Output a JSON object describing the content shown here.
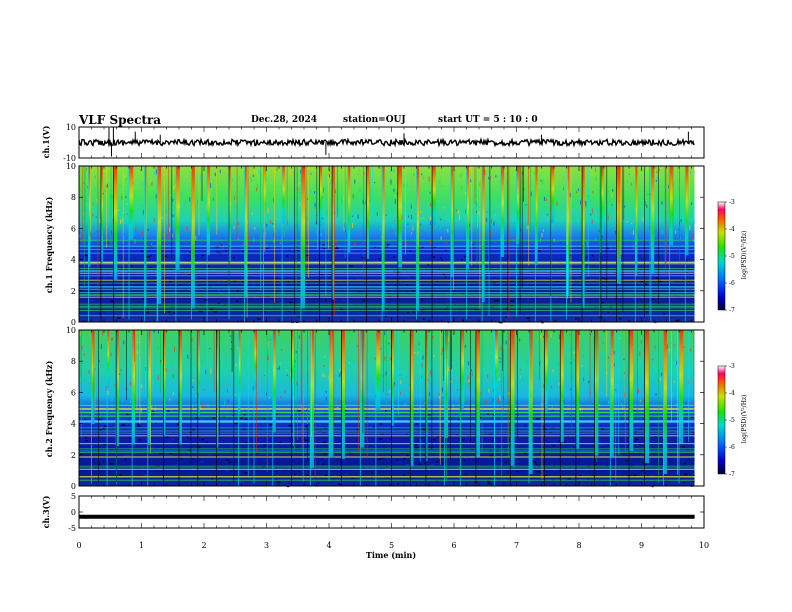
{
  "header": {
    "title": "VLF Spectra",
    "date": "Dec.28, 2024",
    "station": "station=OUJ",
    "start": "start  UT =  5 : 10 : 0"
  },
  "chart_data": [
    {
      "type": "line",
      "name": "ch1-waveform",
      "ylabel": "ch.1(V)",
      "ylim": [
        -10,
        10
      ],
      "yticks": [
        "10",
        "-10"
      ],
      "baseline": 0,
      "spikes": [
        {
          "t": 0.48,
          "v": 9.5
        },
        {
          "t": 0.52,
          "v": -9
        },
        {
          "t": 0.55,
          "v": 9.8
        },
        {
          "t": 0.9,
          "v": 7
        },
        {
          "t": 1.3,
          "v": 5
        },
        {
          "t": 3.95,
          "v": -8
        },
        {
          "t": 5.2,
          "v": 6
        },
        {
          "t": 7.4,
          "v": 5
        },
        {
          "t": 9.75,
          "v": 7
        }
      ]
    },
    {
      "type": "heatmap",
      "name": "ch1-spectrogram",
      "ylabel": "ch.1 Frequency (kHz)",
      "ylim": [
        0,
        10
      ],
      "yticks": [
        "0",
        "2",
        "4",
        "6",
        "8",
        "10"
      ],
      "xlim": [
        0,
        10
      ],
      "colorbar": {
        "label": "log(PSD)(V²/Hz)",
        "range": [
          -7,
          -3
        ],
        "ticks": [
          "-3",
          "-4",
          "-5",
          "-6",
          "-7"
        ]
      },
      "bursts_min": [
        0.15,
        0.35,
        0.55,
        0.8,
        1.05,
        1.25,
        1.55,
        1.8,
        2.05,
        2.4,
        2.65,
        2.95,
        3.25,
        3.55,
        3.85,
        4.05,
        4.3,
        4.6,
        4.85,
        5.1,
        5.4,
        5.65,
        5.95,
        6.2,
        6.45,
        6.75,
        7.0,
        7.3,
        7.55,
        7.8,
        8.05,
        8.35,
        8.6,
        8.9,
        9.15,
        9.45,
        9.7
      ]
    },
    {
      "type": "heatmap",
      "name": "ch2-spectrogram",
      "ylabel": "ch.2 Frequency (kHz)",
      "ylim": [
        0,
        10
      ],
      "yticks": [
        "0",
        "2",
        "4",
        "6",
        "8",
        "10"
      ],
      "xlim": [
        0,
        10
      ],
      "colorbar": {
        "label": "log(PSD)(V²/Hz)",
        "range": [
          -7,
          -3
        ],
        "ticks": [
          "-3",
          "-4",
          "-5",
          "-6",
          "-7"
        ]
      },
      "bursts_min": [
        0.2,
        0.45,
        0.6,
        0.85,
        1.1,
        1.35,
        1.6,
        1.9,
        2.2,
        2.55,
        2.8,
        3.1,
        3.4,
        3.7,
        4.0,
        4.2,
        4.5,
        4.75,
        5.0,
        5.3,
        5.55,
        5.85,
        6.1,
        6.35,
        6.65,
        6.9,
        7.2,
        7.45,
        7.7,
        7.95,
        8.25,
        8.5,
        8.8,
        9.05,
        9.35,
        9.6
      ]
    },
    {
      "type": "line",
      "name": "ch3-waveform",
      "ylabel": "ch.3(V)",
      "ylim": [
        -5,
        5
      ],
      "yticks": [
        "5",
        "0",
        "-5"
      ],
      "value": -1.5
    }
  ],
  "xaxis": {
    "label": "Time  (min)",
    "ticks": [
      "0",
      "1",
      "2",
      "3",
      "4",
      "5",
      "6",
      "7",
      "8",
      "9",
      "10"
    ],
    "range": [
      0,
      10
    ],
    "data_end": 9.85
  }
}
